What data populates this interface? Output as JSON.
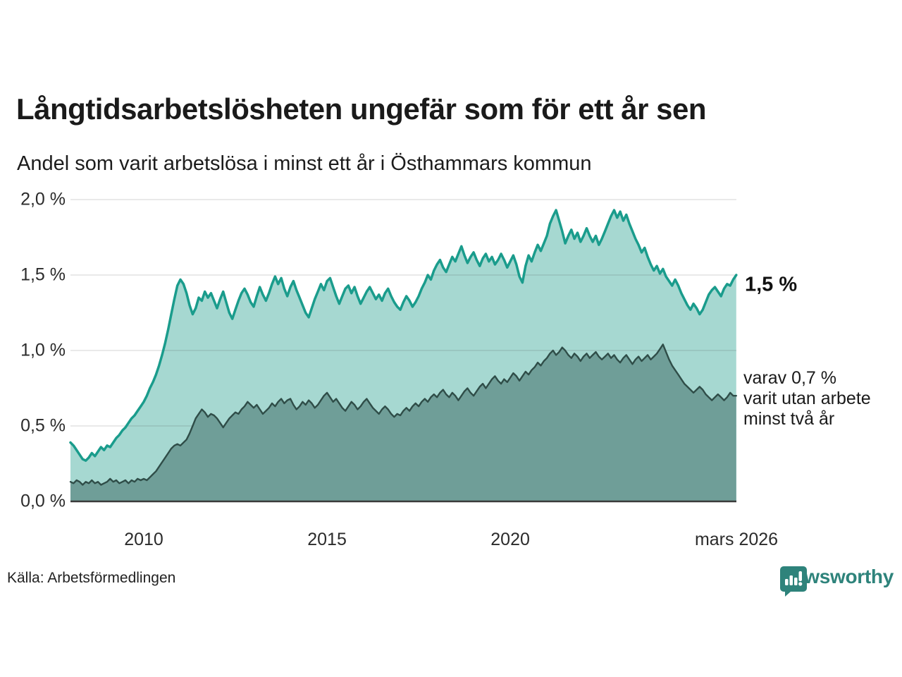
{
  "header": {
    "title": "Långtidsarbetslösheten ungefär som för ett år sen",
    "subtitle": "Andel som varit arbetslösa i minst ett år i Östhammars kommun"
  },
  "annotations": {
    "latest_total_label": "1,5 %",
    "subset_label_line1": "varav 0,7 %",
    "subset_label_line2": "varit utan arbete",
    "subset_label_line3": "minst två år"
  },
  "footer": {
    "source": "Källa: Arbetsförmedlingen",
    "brand_name": "Newsworthy",
    "brand_color": "#2e837b",
    "brand_icon": "bar-chart-speech-bubble-icon"
  },
  "chart_data": {
    "type": "area",
    "title": "Långtidsarbetslösheten ungefär som för ett år sen",
    "subtitle": "Andel som varit arbetslösa i minst ett år i Östhammars kommun",
    "xlabel": "",
    "ylabel": "",
    "ylim": [
      0,
      2.0
    ],
    "xlim": [
      2008.0,
      2026.17
    ],
    "grid": true,
    "legend_position": "right-annotations",
    "y_ticks": [
      {
        "label": "0,0 %",
        "value": 0.0
      },
      {
        "label": "0,5 %",
        "value": 0.5
      },
      {
        "label": "1,0 %",
        "value": 1.0
      },
      {
        "label": "1,5 %",
        "value": 1.5
      },
      {
        "label": "2,0 %",
        "value": 2.0
      }
    ],
    "x_ticks": [
      {
        "label": "2010",
        "x": 2010.0
      },
      {
        "label": "2015",
        "x": 2015.0
      },
      {
        "label": "2020",
        "x": 2020.0
      },
      {
        "label": "mars 2026",
        "x": 2026.17
      }
    ],
    "colors": {
      "grid": "rgba(60,60,60,0.15)",
      "baseline": "#3a3a3a",
      "series1_line": "#1a9c8c",
      "series1_fill": "#a6d8d1",
      "series2_line": "#2f4d48",
      "series2_fill": "#6f9e98"
    },
    "series": [
      {
        "name": "Andel som varit arbetslösa i minst ett år",
        "latest_label": "1,5 %",
        "latest_value": 1.5,
        "start_year": 2008,
        "interval_months": 1,
        "values": [
          0.39,
          0.37,
          0.34,
          0.31,
          0.28,
          0.27,
          0.29,
          0.32,
          0.3,
          0.33,
          0.36,
          0.34,
          0.37,
          0.36,
          0.39,
          0.42,
          0.44,
          0.47,
          0.49,
          0.52,
          0.55,
          0.57,
          0.6,
          0.63,
          0.66,
          0.7,
          0.75,
          0.79,
          0.84,
          0.9,
          0.97,
          1.05,
          1.14,
          1.24,
          1.34,
          1.43,
          1.47,
          1.44,
          1.38,
          1.3,
          1.24,
          1.28,
          1.35,
          1.33,
          1.39,
          1.35,
          1.38,
          1.33,
          1.28,
          1.34,
          1.39,
          1.32,
          1.25,
          1.21,
          1.27,
          1.33,
          1.38,
          1.41,
          1.37,
          1.32,
          1.29,
          1.36,
          1.42,
          1.37,
          1.33,
          1.38,
          1.44,
          1.49,
          1.44,
          1.48,
          1.41,
          1.36,
          1.42,
          1.46,
          1.4,
          1.35,
          1.3,
          1.25,
          1.22,
          1.28,
          1.34,
          1.39,
          1.44,
          1.4,
          1.46,
          1.48,
          1.42,
          1.36,
          1.31,
          1.36,
          1.41,
          1.43,
          1.38,
          1.42,
          1.36,
          1.31,
          1.35,
          1.39,
          1.42,
          1.38,
          1.34,
          1.37,
          1.33,
          1.38,
          1.41,
          1.36,
          1.32,
          1.29,
          1.27,
          1.32,
          1.36,
          1.33,
          1.29,
          1.32,
          1.36,
          1.41,
          1.45,
          1.5,
          1.47,
          1.53,
          1.57,
          1.6,
          1.55,
          1.52,
          1.57,
          1.62,
          1.59,
          1.64,
          1.69,
          1.63,
          1.58,
          1.62,
          1.65,
          1.6,
          1.56,
          1.61,
          1.64,
          1.59,
          1.62,
          1.57,
          1.6,
          1.64,
          1.6,
          1.55,
          1.59,
          1.63,
          1.57,
          1.49,
          1.45,
          1.56,
          1.63,
          1.59,
          1.65,
          1.7,
          1.66,
          1.71,
          1.76,
          1.84,
          1.89,
          1.93,
          1.86,
          1.79,
          1.71,
          1.76,
          1.8,
          1.74,
          1.78,
          1.72,
          1.76,
          1.81,
          1.76,
          1.72,
          1.76,
          1.7,
          1.74,
          1.79,
          1.84,
          1.89,
          1.93,
          1.88,
          1.92,
          1.86,
          1.9,
          1.84,
          1.79,
          1.74,
          1.7,
          1.65,
          1.68,
          1.62,
          1.57,
          1.53,
          1.56,
          1.51,
          1.54,
          1.49,
          1.46,
          1.43,
          1.47,
          1.43,
          1.38,
          1.34,
          1.3,
          1.27,
          1.31,
          1.28,
          1.24,
          1.27,
          1.32,
          1.37,
          1.4,
          1.42,
          1.39,
          1.36,
          1.41,
          1.44,
          1.43,
          1.47,
          1.5
        ]
      },
      {
        "name": "varav utan arbete minst två år",
        "latest_label": "varav 0,7 % varit utan arbete minst två år",
        "latest_value": 0.7,
        "start_year": 2008,
        "interval_months": 1,
        "values": [
          0.13,
          0.12,
          0.14,
          0.13,
          0.11,
          0.13,
          0.12,
          0.14,
          0.12,
          0.13,
          0.11,
          0.12,
          0.13,
          0.15,
          0.13,
          0.14,
          0.12,
          0.13,
          0.14,
          0.12,
          0.14,
          0.13,
          0.15,
          0.14,
          0.15,
          0.14,
          0.16,
          0.18,
          0.2,
          0.23,
          0.26,
          0.29,
          0.32,
          0.35,
          0.37,
          0.38,
          0.37,
          0.39,
          0.41,
          0.45,
          0.5,
          0.55,
          0.58,
          0.61,
          0.59,
          0.56,
          0.58,
          0.57,
          0.55,
          0.52,
          0.49,
          0.52,
          0.55,
          0.57,
          0.59,
          0.58,
          0.61,
          0.63,
          0.66,
          0.64,
          0.62,
          0.64,
          0.61,
          0.58,
          0.6,
          0.62,
          0.65,
          0.63,
          0.66,
          0.68,
          0.65,
          0.67,
          0.68,
          0.64,
          0.61,
          0.63,
          0.66,
          0.64,
          0.67,
          0.65,
          0.62,
          0.64,
          0.67,
          0.7,
          0.72,
          0.69,
          0.66,
          0.68,
          0.65,
          0.62,
          0.6,
          0.63,
          0.66,
          0.64,
          0.61,
          0.63,
          0.66,
          0.68,
          0.65,
          0.62,
          0.6,
          0.58,
          0.61,
          0.63,
          0.61,
          0.58,
          0.56,
          0.58,
          0.57,
          0.6,
          0.62,
          0.6,
          0.63,
          0.65,
          0.63,
          0.66,
          0.68,
          0.66,
          0.69,
          0.71,
          0.69,
          0.72,
          0.74,
          0.71,
          0.69,
          0.72,
          0.7,
          0.67,
          0.7,
          0.73,
          0.75,
          0.72,
          0.7,
          0.73,
          0.76,
          0.78,
          0.75,
          0.78,
          0.81,
          0.83,
          0.8,
          0.78,
          0.81,
          0.79,
          0.82,
          0.85,
          0.83,
          0.8,
          0.83,
          0.86,
          0.84,
          0.87,
          0.89,
          0.92,
          0.9,
          0.93,
          0.95,
          0.98,
          1.0,
          0.97,
          0.99,
          1.02,
          1.0,
          0.97,
          0.95,
          0.98,
          0.96,
          0.93,
          0.96,
          0.98,
          0.95,
          0.97,
          0.99,
          0.96,
          0.94,
          0.96,
          0.98,
          0.95,
          0.97,
          0.94,
          0.92,
          0.95,
          0.97,
          0.94,
          0.91,
          0.94,
          0.96,
          0.93,
          0.95,
          0.97,
          0.94,
          0.96,
          0.98,
          1.01,
          1.04,
          0.99,
          0.94,
          0.9,
          0.87,
          0.84,
          0.81,
          0.78,
          0.76,
          0.74,
          0.72,
          0.74,
          0.76,
          0.74,
          0.71,
          0.69,
          0.67,
          0.69,
          0.71,
          0.69,
          0.67,
          0.69,
          0.72,
          0.7,
          0.7
        ]
      }
    ]
  }
}
